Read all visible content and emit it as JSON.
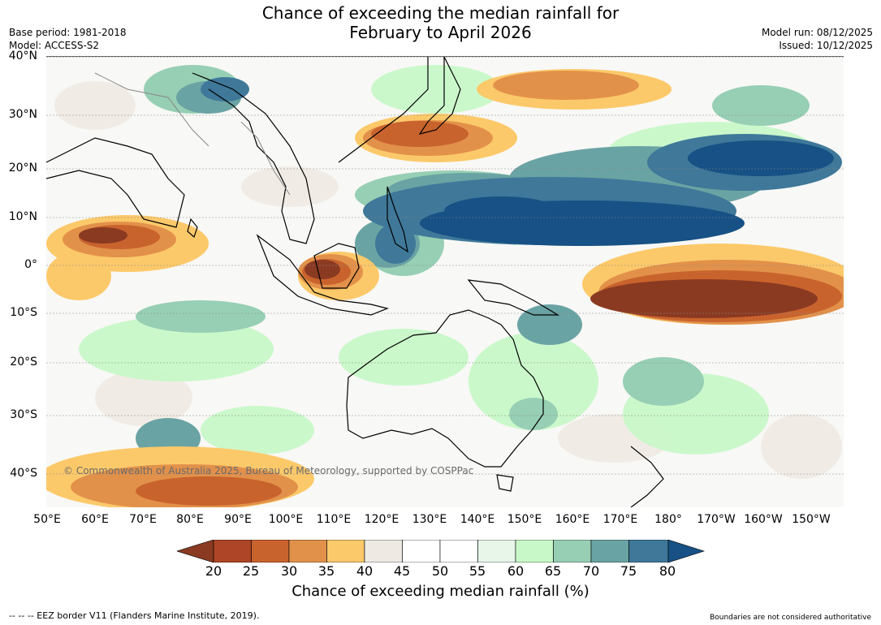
{
  "title_line1": "Chance of exceeding the median rainfall for",
  "title_line2": "February to April 2026",
  "base_period": "Base period: 1981-2018",
  "model": "Model: ACCESS-S2",
  "model_run": "Model run: 08/12/2025",
  "issued": "Issued: 10/12/2025",
  "lat_labels": [
    "40°N",
    "30°N",
    "20°N",
    "10°N",
    "0°",
    "10°S",
    "20°S",
    "30°S",
    "40°S"
  ],
  "lon_labels": [
    "50°E",
    "60°E",
    "70°E",
    "80°E",
    "90°E",
    "100°E",
    "110°E",
    "120°E",
    "130°E",
    "140°E",
    "150°E",
    "160°E",
    "170°E",
    "180°",
    "170°W",
    "160°W",
    "150°W"
  ],
  "copyright": "© Commonwealth of Australia 2025, Bureau of Meteorology, supported by COSPPac",
  "legend": {
    "ticks": [
      "20",
      "25",
      "30",
      "35",
      "40",
      "45",
      "50",
      "55",
      "60",
      "65",
      "70",
      "75",
      "80"
    ],
    "colors": [
      "#8b3a22",
      "#ad4526",
      "#c9632d",
      "#e2914a",
      "#fcc96a",
      "#eeeae3",
      "#ffffff",
      "#ffffff",
      "#e8f6ea",
      "#c8f8c8",
      "#97cfb4",
      "#6aa3a3",
      "#3f7899",
      "#175185"
    ],
    "title": "Chance of exceeding median rainfall (%)"
  },
  "footer_left": "--  --  -- EEZ border V11 (Flanders Marine Institute, 2019).",
  "footer_right": "Boundaries are not considered authoritative"
}
